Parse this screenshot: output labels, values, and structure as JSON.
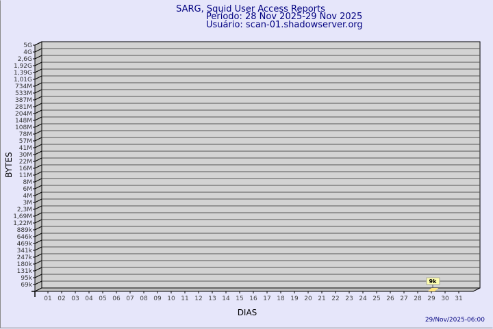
{
  "chart_data": {
    "type": "bar",
    "title": "SARG, Squid User Access Reports",
    "subtitle_period": "Período: 28 Nov 2025-29 Nov 2025",
    "subtitle_user": "Usuário: scan-01.shadowserver.org",
    "xlabel": "DIAS",
    "ylabel": "BYTES",
    "y_scale": "log",
    "grid": true,
    "y_tick_labels": [
      "5G",
      "4G",
      "2,6G",
      "1,92G",
      "1,39G",
      "1,01G",
      "734M",
      "533M",
      "387M",
      "281M",
      "204M",
      "148M",
      "108M",
      "78M",
      "57M",
      "41M",
      "30M",
      "22M",
      "16M",
      "11M",
      "8M",
      "6M",
      "4M",
      "3M",
      "2,3M",
      "1,69M",
      "1,22M",
      "889k",
      "646k",
      "469k",
      "341k",
      "247k",
      "180k",
      "131k",
      "95k",
      "69k"
    ],
    "categories": [
      "01",
      "02",
      "03",
      "04",
      "05",
      "06",
      "07",
      "08",
      "09",
      "10",
      "11",
      "12",
      "13",
      "14",
      "15",
      "16",
      "17",
      "18",
      "19",
      "20",
      "21",
      "22",
      "23",
      "24",
      "25",
      "26",
      "27",
      "28",
      "29",
      "30",
      "31"
    ],
    "values": [
      null,
      null,
      null,
      null,
      null,
      null,
      null,
      null,
      null,
      null,
      null,
      null,
      null,
      null,
      null,
      null,
      null,
      null,
      null,
      null,
      null,
      null,
      null,
      null,
      null,
      null,
      null,
      null,
      9000,
      null,
      null
    ],
    "data_labels": {
      "29": "9k"
    },
    "colors": {
      "bar": "#ffe680",
      "label_bg": "#ffffb0",
      "wall": "#d3d3d3",
      "side": "#c0c0c0",
      "text": "#000080"
    }
  },
  "footer": {
    "timestamp": "29/Nov/2025-06:00"
  }
}
